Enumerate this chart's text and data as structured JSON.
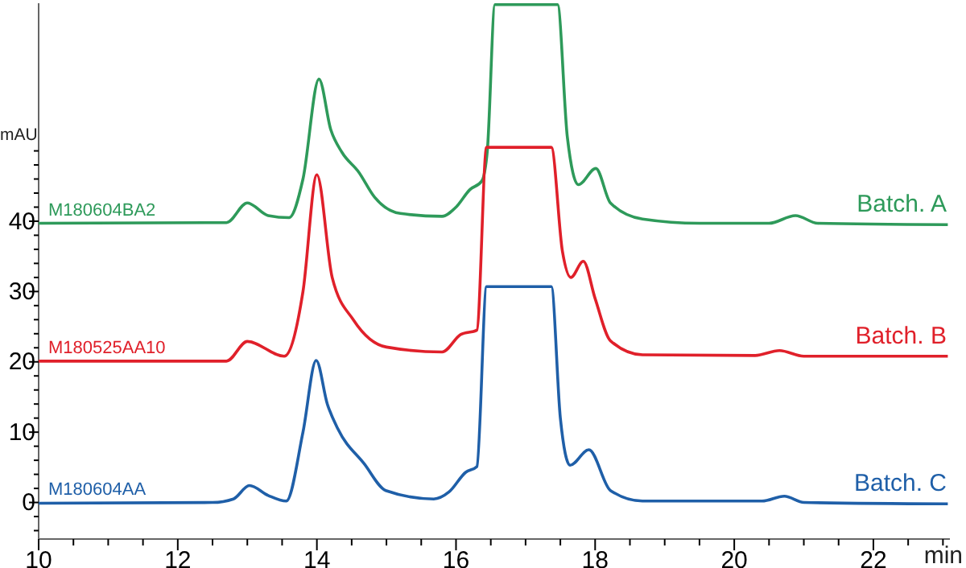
{
  "chart_data": {
    "type": "line",
    "xlabel": "min",
    "ylabel": "mAU",
    "xlim": [
      10,
      23.1
    ],
    "ylim": [
      -5.2,
      71
    ],
    "xticks": [
      10,
      {
        "value": 10.5,
        "label": null
      },
      {
        "value": 11,
        "label": null
      },
      {
        "value": 11.5,
        "label": null
      },
      12,
      {
        "value": 12.5,
        "label": null
      },
      {
        "value": 13,
        "label": null
      },
      {
        "value": 13.5,
        "label": null
      },
      14,
      {
        "value": 14.5,
        "label": null
      },
      {
        "value": 15,
        "label": null
      },
      {
        "value": 15.5,
        "label": null
      },
      16,
      {
        "value": 16.5,
        "label": null
      },
      {
        "value": 17,
        "label": null
      },
      {
        "value": 17.5,
        "label": null
      },
      18,
      {
        "value": 18.5,
        "label": null
      },
      {
        "value": 19,
        "label": null
      },
      {
        "value": 19.5,
        "label": null
      },
      20,
      {
        "value": 20.5,
        "label": null
      },
      {
        "value": 21,
        "label": null
      },
      {
        "value": 21.5,
        "label": null
      },
      22,
      {
        "value": 22.5,
        "label": null
      },
      {
        "value": 23,
        "label": null
      }
    ],
    "yticks": [
      {
        "value": -4,
        "label": null
      },
      {
        "value": -2,
        "label": null
      },
      0,
      {
        "value": 2,
        "label": null
      },
      {
        "value": 4,
        "label": null
      },
      {
        "value": 6,
        "label": null
      },
      {
        "value": 8,
        "label": null
      },
      10,
      {
        "value": 12,
        "label": null
      },
      {
        "value": 14,
        "label": null
      },
      {
        "value": 16,
        "label": null
      },
      {
        "value": 18,
        "label": null
      },
      20,
      {
        "value": 22,
        "label": null
      },
      {
        "value": 24,
        "label": null
      },
      {
        "value": 26,
        "label": null
      },
      {
        "value": 28,
        "label": null
      },
      30,
      {
        "value": 32,
        "label": null
      },
      {
        "value": 34,
        "label": null
      },
      {
        "value": 36,
        "label": null
      },
      {
        "value": 38,
        "label": null
      },
      40,
      {
        "value": 42,
        "label": null
      },
      {
        "value": 44,
        "label": null
      },
      {
        "value": 46,
        "label": null
      },
      {
        "value": 48,
        "label": null
      },
      {
        "value": 50,
        "label": null
      }
    ],
    "grid": false,
    "legend": false,
    "marker": "none",
    "line_style": "solid",
    "series": [
      {
        "name": "Batch. A",
        "color": "#2e9a5a",
        "x": [
          10,
          12.7,
          13.0,
          13.3,
          13.6,
          13.8,
          14.03,
          14.2,
          14.36,
          14.6,
          14.83,
          15.2,
          15.8,
          16.0,
          16.2,
          16.37,
          16.45,
          16.56,
          17.46,
          17.6,
          17.76,
          18.01,
          18.22,
          18.68,
          19.5,
          20.5,
          20.88,
          21.2,
          23.07
        ],
        "values": [
          39.7,
          39.8,
          42.6,
          40.8,
          40.5,
          46,
          60.2,
          53,
          49.8,
          47,
          43.4,
          41.1,
          40.7,
          42,
          44.5,
          45.7,
          50,
          70.8,
          70.8,
          52,
          45.2,
          47.5,
          42.6,
          40.3,
          39.7,
          39.7,
          40.8,
          39.7,
          39.5
        ]
      },
      {
        "name": "Batch. B",
        "color": "#e0202a",
        "x": [
          10,
          12.7,
          13.0,
          13.53,
          13.8,
          14.0,
          14.22,
          14.53,
          15.0,
          15.8,
          16.07,
          16.3,
          16.44,
          17.37,
          17.53,
          17.65,
          17.83,
          18.0,
          18.22,
          18.68,
          20.3,
          20.65,
          21.0,
          23.07
        ],
        "values": [
          20.1,
          20.1,
          22.9,
          20.8,
          30,
          46.6,
          32,
          25.9,
          22.1,
          21.4,
          23.9,
          24.5,
          50.5,
          50.5,
          35.7,
          32,
          34.3,
          29,
          23,
          21,
          20.9,
          21.6,
          20.8,
          20.8
        ]
      },
      {
        "name": "Batch. C",
        "color": "#1f5fa8",
        "x": [
          10,
          12.5,
          12.8,
          13.03,
          13.3,
          13.56,
          13.8,
          13.99,
          14.15,
          14.3,
          14.68,
          14.99,
          15.68,
          15.9,
          16.14,
          16.3,
          16.44,
          17.37,
          17.5,
          17.64,
          17.91,
          18.22,
          18.68,
          20.4,
          20.72,
          21.0,
          23.07
        ],
        "values": [
          -0.1,
          0,
          0.5,
          2.4,
          1.0,
          0.2,
          10,
          20.2,
          14,
          10.5,
          5.5,
          1.7,
          0.5,
          1.5,
          4.3,
          5.1,
          30.7,
          30.7,
          12,
          5.3,
          7.5,
          1.7,
          0.2,
          0.2,
          0.9,
          0,
          -0.2
        ]
      }
    ],
    "annotations": [
      "M180604BA2",
      "M180525AA10",
      "M180604AA"
    ]
  }
}
